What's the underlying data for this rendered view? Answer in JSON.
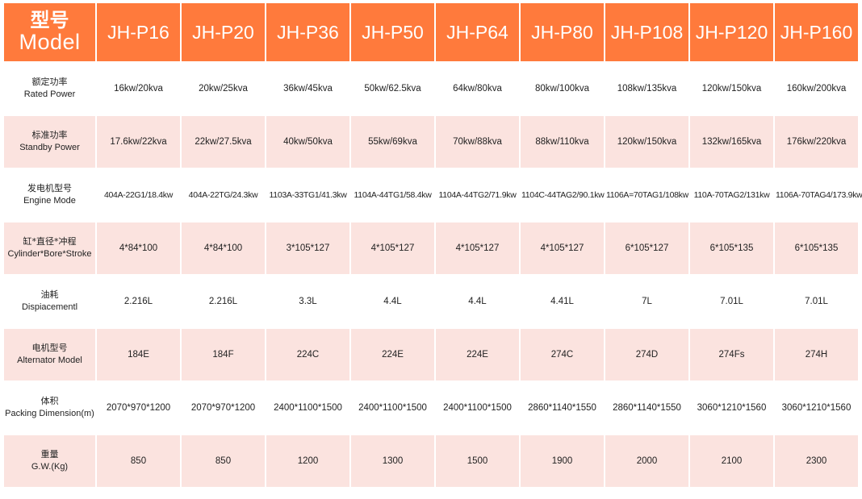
{
  "header": {
    "label_zh": "型号",
    "label_en": "Model",
    "models": [
      "JH-P16",
      "JH-P20",
      "JH-P36",
      "JH-P50",
      "JH-P64",
      "JH-P80",
      "JH-P108",
      "JH-P120",
      "JH-P160"
    ]
  },
  "rows": [
    {
      "label_zh": "额定功率",
      "label_en": "Rated Power",
      "values": [
        "16kw/20kva",
        "20kw/25kva",
        "36kw/45kva",
        "50kw/62.5kva",
        "64kw/80kva",
        "80kw/100kva",
        "108kw/135kva",
        "120kw/150kva",
        "160kw/200kva"
      ]
    },
    {
      "label_zh": "标准功率",
      "label_en": "Standby Power",
      "values": [
        "17.6kw/22kva",
        "22kw/27.5kva",
        "40kw/50kva",
        "55kw/69kva",
        "70kw/88kva",
        "88kw/110kva",
        "120kw/150kva",
        "132kw/165kva",
        "176kw/220kva"
      ]
    },
    {
      "label_zh": "发电机型号",
      "label_en": "Engine Mode",
      "values": [
        "404A-22G1/18.4kw",
        "404A-22TG/24.3kw",
        "1103A-33TG1/41.3kw",
        "1104A-44TG1/58.4kw",
        "1104A-44TG2/71.9kw",
        "1104C-44TAG2/90.1kw",
        "1106A=70TAG1/108kw",
        "110A-70TAG2/131kw",
        "1106A-70TAG4/173.9kw"
      ]
    },
    {
      "label_zh": "缸*直径*冲程",
      "label_en": "Cylinder*Bore*Stroke",
      "values": [
        "4*84*100",
        "4*84*100",
        "3*105*127",
        "4*105*127",
        "4*105*127",
        "4*105*127",
        "6*105*127",
        "6*105*135",
        "6*105*135"
      ]
    },
    {
      "label_zh": "油耗",
      "label_en": "Dispiacementl",
      "values": [
        "2.216L",
        "2.216L",
        "3.3L",
        "4.4L",
        "4.4L",
        "4.41L",
        "7L",
        "7.01L",
        "7.01L"
      ]
    },
    {
      "label_zh": "电机型号",
      "label_en": "Alternator Model",
      "values": [
        "184E",
        "184F",
        "224C",
        "224E",
        "224E",
        "274C",
        "274D",
        "274Fs",
        "274H"
      ]
    },
    {
      "label_zh": "体积",
      "label_en": "Packing Dimension(m)",
      "values": [
        "2070*970*1200",
        "2070*970*1200",
        "2400*1100*1500",
        "2400*1100*1500",
        "2400*1100*1500",
        "2860*1140*1550",
        "2860*1140*1550",
        "3060*1210*1560",
        "3060*1210*1560"
      ]
    },
    {
      "label_zh": "重量",
      "label_en": "G.W.(Kg)",
      "values": [
        "850",
        "850",
        "1200",
        "1300",
        "1500",
        "1900",
        "2000",
        "2100",
        "2300"
      ]
    }
  ],
  "colors": {
    "header_bg": "#ff7a3c",
    "header_text": "#ffffff",
    "row_even_bg": "#fbe3df",
    "row_odd_bg": "#ffffff"
  }
}
